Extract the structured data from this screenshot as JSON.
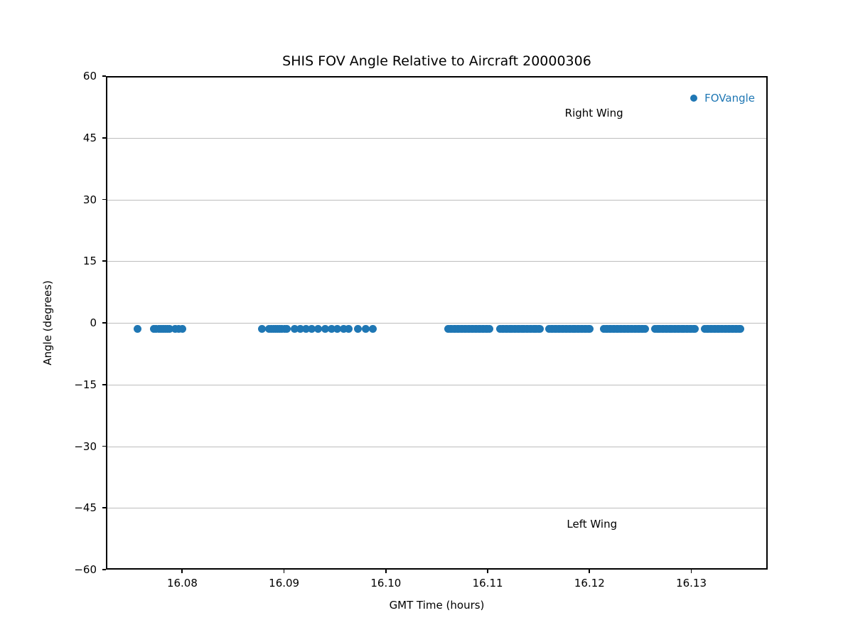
{
  "chart_data": {
    "type": "scatter",
    "title": "SHIS FOV Angle Relative to Aircraft 20000306",
    "xlabel": "GMT Time (hours)",
    "ylabel": "Angle (degrees)",
    "xlim": [
      16.0725,
      16.1375
    ],
    "ylim": [
      -60,
      60
    ],
    "xticks": [
      16.08,
      16.09,
      16.1,
      16.11,
      16.12,
      16.13
    ],
    "yticks": [
      -60,
      -45,
      -30,
      -15,
      0,
      15,
      30,
      45,
      60
    ],
    "grid": "horizontal-only",
    "grid_color": "#bdbdbd",
    "legend": {
      "label": "FOVangle",
      "location": "upper right",
      "text_color": "#1f77b4"
    },
    "annotations": [
      {
        "text": "Right Wing",
        "x": 16.1203,
        "y": 51.4
      },
      {
        "text": "Left Wing",
        "x": 16.1201,
        "y": -48.6
      }
    ],
    "series": [
      {
        "name": "FOVangle",
        "marker": "circle",
        "color": "#1f77b4",
        "y_value": -1.2,
        "segments": [
          {
            "x_start": 16.0755,
            "x_end": 16.0755,
            "points": 1
          },
          {
            "x_start": 16.0771,
            "x_end": 16.0786,
            "points": 8
          },
          {
            "x_start": 16.0792,
            "x_end": 16.0799,
            "points": 3
          },
          {
            "x_start": 16.0877,
            "x_end": 16.0877,
            "points": 1
          },
          {
            "x_start": 16.0884,
            "x_end": 16.0901,
            "points": 9
          },
          {
            "x_start": 16.0909,
            "x_end": 16.0926,
            "points": 4
          },
          {
            "x_start": 16.0932,
            "x_end": 16.0939,
            "points": 2
          },
          {
            "x_start": 16.0945,
            "x_end": 16.0951,
            "points": 2
          },
          {
            "x_start": 16.0957,
            "x_end": 16.0962,
            "points": 2
          },
          {
            "x_start": 16.0971,
            "x_end": 16.0986,
            "points": 3
          },
          {
            "x_start": 16.106,
            "x_end": 16.11,
            "points": 24
          },
          {
            "x_start": 16.1111,
            "x_end": 16.115,
            "points": 24
          },
          {
            "x_start": 16.1159,
            "x_end": 16.1199,
            "points": 24
          },
          {
            "x_start": 16.1213,
            "x_end": 16.1253,
            "points": 24
          },
          {
            "x_start": 16.1263,
            "x_end": 16.1302,
            "points": 24
          },
          {
            "x_start": 16.1312,
            "x_end": 16.1347,
            "points": 21
          }
        ]
      }
    ]
  }
}
